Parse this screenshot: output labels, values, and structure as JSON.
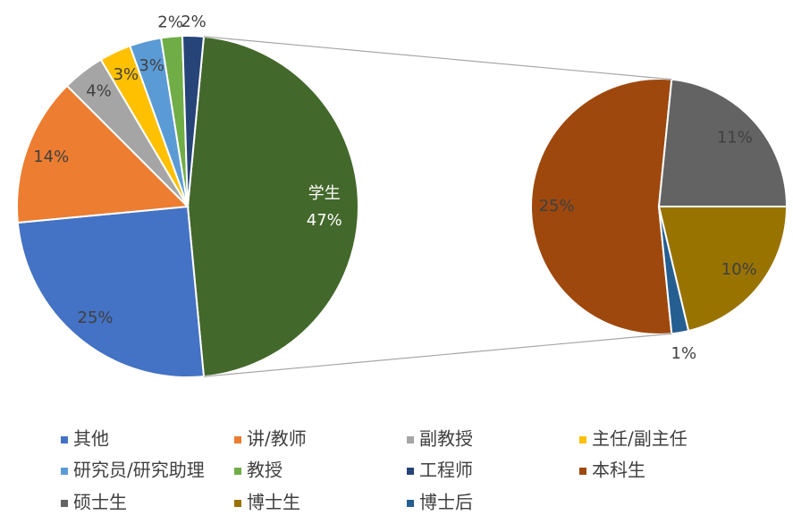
{
  "chart_data": {
    "type": "pie-of-pie",
    "main": {
      "categories": [
        "其他",
        "讲/教师",
        "副教授",
        "主任/副主任",
        "研究员/研究助理",
        "教授",
        "工程师"
      ],
      "values": [
        25,
        14,
        4,
        3,
        3,
        2,
        2
      ],
      "value_labels": [
        "25%",
        "14%",
        "4%",
        "3%",
        "3%",
        "2%",
        "2%"
      ],
      "colors": [
        "#4472c4",
        "#ed7d31",
        "#a5a5a5",
        "#ffc000",
        "#5b9bd5",
        "#70ad47",
        "#264478"
      ]
    },
    "combined": {
      "label": "学生",
      "value": 47,
      "value_label": "47%",
      "color": "#43682b"
    },
    "secondary": {
      "categories": [
        "本科生",
        "硕士生",
        "博士生",
        "博士后"
      ],
      "values": [
        25,
        11,
        10,
        1
      ],
      "value_labels": [
        "25%",
        "11%",
        "10%",
        "1%"
      ],
      "colors": [
        "#9e480e",
        "#636363",
        "#997300",
        "#255e91"
      ]
    }
  }
}
